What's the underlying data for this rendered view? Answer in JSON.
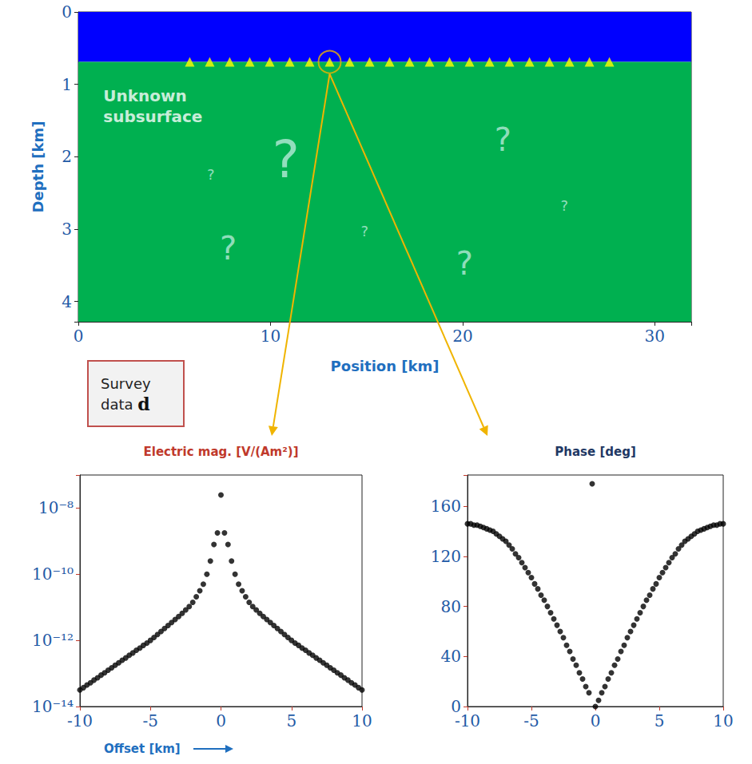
{
  "chart_data": [
    {
      "type": "section",
      "xlabel": "Position [km]",
      "ylabel": "Depth [km]",
      "xlim": [
        0,
        31.9
      ],
      "ylim": [
        0,
        4.28
      ],
      "xticks": [
        0,
        10,
        20,
        30
      ],
      "yticks": [
        0,
        1,
        2,
        3,
        4
      ],
      "layers": [
        {
          "top": 0,
          "bottom": 0.69,
          "color": "#0000ff"
        },
        {
          "top": 0.69,
          "bottom": 4.28,
          "color": "#00b050"
        }
      ],
      "receivers": {
        "x": [
          5.8,
          6.84,
          7.88,
          8.92,
          9.96,
          11.0,
          12.04,
          13.08,
          14.12,
          15.16,
          16.2,
          17.24,
          18.28,
          19.32,
          20.36,
          21.4,
          22.44,
          23.48,
          24.52,
          25.56,
          26.6,
          27.64
        ],
        "depth": 0.69,
        "color": "#ffff00",
        "marker": "triangle"
      },
      "selected_receiver": {
        "x": 13.08,
        "depth": 0.69,
        "color": "#f0b400"
      },
      "annotations": [
        {
          "text": "Unknown subsurface",
          "x": 1.3,
          "y": 1.3
        }
      ],
      "unknowns": [
        {
          "text": "?",
          "x": 10.8,
          "y": 2.04
        },
        {
          "text": "?",
          "x": 7.8,
          "y": 3.27
        },
        {
          "text": "?",
          "x": 20.1,
          "y": 3.47
        },
        {
          "text": "?",
          "x": 22.1,
          "y": 1.76
        },
        {
          "text": "?",
          "x": 6.9,
          "y": 2.24
        },
        {
          "text": "?",
          "x": 14.9,
          "y": 3.03
        },
        {
          "text": "?",
          "x": 25.3,
          "y": 2.68
        }
      ]
    },
    {
      "type": "scatter",
      "title": "Electric mag. [V/(Am²)]",
      "xlabel": "Offset [km]",
      "log": "y",
      "color": "#000000",
      "marker": "circle",
      "xlim": [
        -10,
        10
      ],
      "ylim": [
        1e-14,
        1e-07
      ],
      "xticks": [
        -10,
        -5,
        0,
        5,
        10
      ],
      "yticks": [
        {
          "value": 1e-14,
          "label": "10⁻¹⁴"
        },
        {
          "value": 1e-12,
          "label": "10⁻¹²"
        },
        {
          "value": 1e-10,
          "label": "10⁻¹⁰"
        },
        {
          "value": 1e-08,
          "label": "10⁻⁸"
        }
      ],
      "x": [
        -10,
        -9.75,
        -9.5,
        -9.25,
        -9,
        -8.75,
        -8.5,
        -8.25,
        -8,
        -7.75,
        -7.5,
        -7.25,
        -7,
        -6.75,
        -6.5,
        -6.25,
        -6,
        -5.75,
        -5.5,
        -5.25,
        -5,
        -4.75,
        -4.5,
        -4.25,
        -4,
        -3.75,
        -3.5,
        -3.25,
        -3,
        -2.75,
        -2.5,
        -2.25,
        -2,
        -1.75,
        -1.5,
        -1.25,
        -1,
        -0.75,
        -0.5,
        -0.25,
        0,
        0.25,
        0.5,
        0.75,
        1,
        1.25,
        1.5,
        1.75,
        2,
        2.25,
        2.5,
        2.75,
        3,
        3.25,
        3.5,
        3.75,
        4,
        4.25,
        4.5,
        4.75,
        5,
        5.25,
        5.5,
        5.75,
        6,
        6.25,
        6.5,
        6.75,
        7,
        7.25,
        7.5,
        7.75,
        8,
        8.25,
        8.5,
        8.75,
        9,
        9.25,
        9.5,
        9.75,
        10
      ],
      "values": [
        3.16e-14,
        3.72e-14,
        4.47e-14,
        5.25e-14,
        6.31e-14,
        7.41e-14,
        8.91e-14,
        1.05e-13,
        1.26e-13,
        1.48e-13,
        1.78e-13,
        2.09e-13,
        2.51e-13,
        2.95e-13,
        3.55e-13,
        4.17e-13,
        5.01e-13,
        5.89e-13,
        7.08e-13,
        8.32e-13,
        1e-12,
        1.23e-12,
        1.51e-12,
        1.86e-12,
        2.29e-12,
        2.82e-12,
        3.47e-12,
        4.27e-12,
        5.25e-12,
        6.61e-12,
        8.32e-12,
        1.05e-11,
        1.41e-11,
        2.09e-11,
        3.16e-11,
        5.01e-11,
        1e-10,
        2.51e-10,
        7.94e-10,
        1.78e-09,
        2.5e-08,
        1.78e-09,
        7.94e-10,
        2.51e-10,
        1e-10,
        5.01e-11,
        3.16e-11,
        2.09e-11,
        1.41e-11,
        1.05e-11,
        8.32e-12,
        6.61e-12,
        5.25e-12,
        4.27e-12,
        3.47e-12,
        2.82e-12,
        2.29e-12,
        1.86e-12,
        1.51e-12,
        1.23e-12,
        1e-12,
        8.32e-13,
        7.08e-13,
        5.89e-13,
        5.01e-13,
        4.17e-13,
        3.55e-13,
        2.95e-13,
        2.51e-13,
        2.09e-13,
        1.78e-13,
        1.48e-13,
        1.26e-13,
        1.05e-13,
        8.91e-14,
        7.41e-14,
        6.31e-14,
        5.25e-14,
        4.47e-14,
        3.72e-14,
        3.16e-14
      ]
    },
    {
      "type": "scatter",
      "title": "Phase [deg]",
      "color": "#000000",
      "marker": "circle",
      "xlim": [
        -10,
        10
      ],
      "ylim": [
        0,
        185
      ],
      "xticks": [
        -10,
        -5,
        0,
        5,
        10
      ],
      "yticks": [
        0,
        40,
        80,
        120,
        160
      ],
      "x": [
        -10,
        -9.75,
        -9.5,
        -9.25,
        -9,
        -8.75,
        -8.5,
        -8.25,
        -8,
        -7.75,
        -7.5,
        -7.25,
        -7,
        -6.75,
        -6.5,
        -6.25,
        -6,
        -5.75,
        -5.5,
        -5.25,
        -5,
        -4.75,
        -4.5,
        -4.25,
        -4,
        -3.75,
        -3.5,
        -3.25,
        -3,
        -2.75,
        -2.5,
        -2.25,
        -2,
        -1.75,
        -1.5,
        -1.25,
        -1,
        -0.75,
        -0.5,
        -0.25,
        0,
        0.25,
        0.5,
        0.75,
        1,
        1.25,
        1.5,
        1.75,
        2,
        2.25,
        2.5,
        2.75,
        3,
        3.25,
        3.5,
        3.75,
        4,
        4.25,
        4.5,
        4.75,
        5,
        5.25,
        5.5,
        5.75,
        6,
        6.25,
        6.5,
        6.75,
        7,
        7.25,
        7.5,
        7.75,
        8,
        8.25,
        8.5,
        8.75,
        9,
        9.25,
        9.5,
        9.75,
        10
      ],
      "values": [
        146,
        146,
        145,
        145,
        144,
        143,
        142,
        141,
        140,
        138,
        136,
        134,
        132,
        129,
        126,
        122,
        119,
        115,
        111,
        107,
        103,
        98,
        94,
        89,
        85,
        80,
        75,
        70,
        65,
        60,
        55,
        49,
        44,
        38,
        33,
        27,
        22,
        16,
        11,
        178,
        0,
        5,
        11,
        16,
        22,
        27,
        33,
        38,
        44,
        49,
        55,
        60,
        65,
        70,
        75,
        80,
        85,
        89,
        94,
        98,
        103,
        107,
        111,
        115,
        119,
        122,
        126,
        129,
        132,
        134,
        136,
        138,
        140,
        141,
        142,
        143,
        144,
        145,
        145,
        146,
        146
      ]
    }
  ],
  "callout": {
    "text": "Survey data",
    "symbol": "d"
  }
}
